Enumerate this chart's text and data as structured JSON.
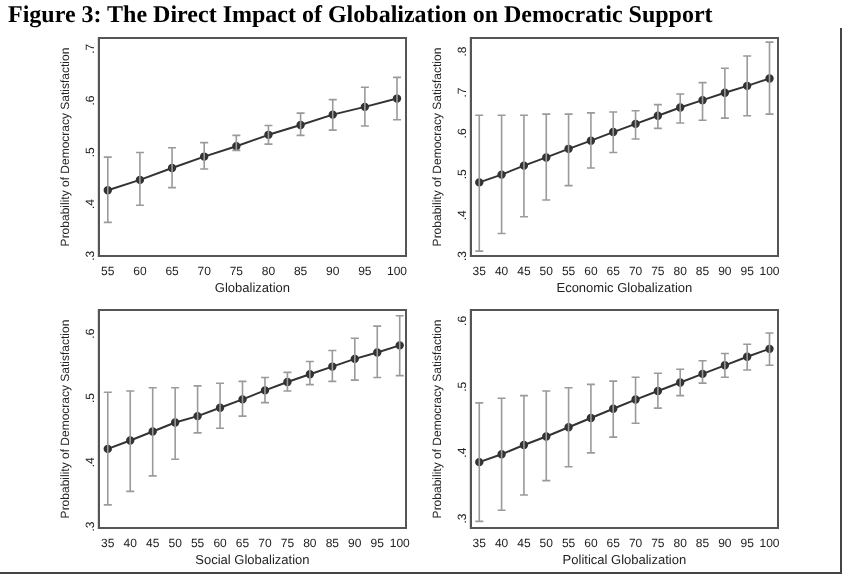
{
  "chart_data": [
    {
      "type": "line",
      "title": "Figure 3: The Direct Impact of Globalization on Democratic Support",
      "xlabel": "Globalization",
      "ylabel": "Probability of Democracy Satisfaction",
      "marker": "circle",
      "grid": false,
      "legend": false,
      "x": [
        55,
        60,
        65,
        70,
        75,
        80,
        85,
        90,
        95,
        100
      ],
      "xlim": [
        53.6,
        101.4
      ],
      "xticks": [
        55,
        60,
        65,
        70,
        75,
        80,
        85,
        90,
        95,
        100
      ],
      "ylim": [
        0.29,
        0.711
      ],
      "yticks": [
        {
          "value": 0.3,
          "label": ".3"
        },
        {
          "value": 0.4,
          "label": ".4"
        },
        {
          "value": 0.5,
          "label": ".5"
        },
        {
          "value": 0.6,
          "label": ".6"
        },
        {
          "value": 0.7,
          "label": ".7"
        }
      ],
      "series": [
        {
          "color": "#333333",
          "values": [
            0.417,
            0.437,
            0.46,
            0.482,
            0.502,
            0.524,
            0.543,
            0.563,
            0.578,
            0.594
          ],
          "errors": [
            [
              0.355,
              0.481
            ],
            [
              0.388,
              0.49
            ],
            [
              0.422,
              0.499
            ],
            [
              0.458,
              0.509
            ],
            [
              0.494,
              0.523
            ],
            [
              0.506,
              0.542
            ],
            [
              0.523,
              0.566
            ],
            [
              0.533,
              0.592
            ],
            [
              0.541,
              0.616
            ],
            [
              0.553,
              0.635
            ]
          ]
        }
      ]
    },
    {
      "type": "line",
      "xlabel": "Economic Globalization",
      "ylabel": "Probability of Democracy Satisfaction",
      "marker": "circle",
      "grid": false,
      "legend": false,
      "x": [
        35,
        40,
        45,
        50,
        55,
        60,
        65,
        70,
        75,
        80,
        85,
        90,
        95,
        100
      ],
      "xlim": [
        33.1,
        101.9
      ],
      "xticks": [
        35,
        40,
        45,
        50,
        55,
        60,
        65,
        70,
        75,
        80,
        85,
        90,
        95,
        100
      ],
      "ylim": [
        0.288,
        0.821
      ],
      "yticks": [
        {
          "value": 0.3,
          "label": ".3"
        },
        {
          "value": 0.4,
          "label": ".4"
        },
        {
          "value": 0.5,
          "label": ".5"
        },
        {
          "value": 0.6,
          "label": ".6"
        },
        {
          "value": 0.7,
          "label": ".7"
        },
        {
          "value": 0.8,
          "label": ".8"
        }
      ],
      "series": [
        {
          "color": "#333333",
          "values": [
            0.468,
            0.487,
            0.509,
            0.529,
            0.55,
            0.57,
            0.591,
            0.611,
            0.631,
            0.651,
            0.669,
            0.687,
            0.704,
            0.722
          ],
          "errors": [
            [
              0.3,
              0.632
            ],
            [
              0.343,
              0.632
            ],
            [
              0.384,
              0.632
            ],
            [
              0.425,
              0.635
            ],
            [
              0.46,
              0.635
            ],
            [
              0.503,
              0.638
            ],
            [
              0.541,
              0.64
            ],
            [
              0.574,
              0.643
            ],
            [
              0.6,
              0.658
            ],
            [
              0.613,
              0.684
            ],
            [
              0.62,
              0.712
            ],
            [
              0.625,
              0.747
            ],
            [
              0.631,
              0.777
            ],
            [
              0.635,
              0.811
            ]
          ]
        }
      ]
    },
    {
      "type": "line",
      "xlabel": "Social Globalization",
      "ylabel": "Probability of Democracy Satisfaction",
      "marker": "circle",
      "grid": false,
      "legend": false,
      "x": [
        35,
        40,
        45,
        50,
        55,
        60,
        65,
        70,
        75,
        80,
        85,
        90,
        95,
        100
      ],
      "xlim": [
        33.0,
        101.4
      ],
      "xticks": [
        35,
        40,
        45,
        50,
        55,
        60,
        65,
        70,
        75,
        80,
        85,
        90,
        95,
        100
      ],
      "ylim": [
        0.29,
        0.629
      ],
      "yticks": [
        {
          "value": 0.3,
          "label": ".3"
        },
        {
          "value": 0.4,
          "label": ".4"
        },
        {
          "value": 0.5,
          "label": ".5"
        },
        {
          "value": 0.6,
          "label": ".6"
        }
      ],
      "series": [
        {
          "color": "#333333",
          "values": [
            0.413,
            0.426,
            0.44,
            0.454,
            0.464,
            0.477,
            0.49,
            0.504,
            0.517,
            0.529,
            0.541,
            0.553,
            0.563,
            0.574
          ],
          "errors": [
            [
              0.326,
              0.501
            ],
            [
              0.347,
              0.503
            ],
            [
              0.371,
              0.508
            ],
            [
              0.397,
              0.508
            ],
            [
              0.438,
              0.511
            ],
            [
              0.445,
              0.515
            ],
            [
              0.464,
              0.518
            ],
            [
              0.485,
              0.524
            ],
            [
              0.503,
              0.532
            ],
            [
              0.513,
              0.549
            ],
            [
              0.518,
              0.566
            ],
            [
              0.52,
              0.585
            ],
            [
              0.524,
              0.604
            ],
            [
              0.527,
              0.62
            ]
          ]
        }
      ]
    },
    {
      "type": "line",
      "xlabel": "Political Globalization",
      "ylabel": "Probability of Democracy Satisfaction",
      "marker": "circle",
      "grid": false,
      "legend": false,
      "x": [
        35,
        40,
        45,
        50,
        55,
        60,
        65,
        70,
        75,
        80,
        85,
        90,
        95,
        100
      ],
      "xlim": [
        33.1,
        101.9
      ],
      "xticks": [
        35,
        40,
        45,
        50,
        55,
        60,
        65,
        70,
        75,
        80,
        85,
        90,
        95,
        100
      ],
      "ylim": [
        0.278,
        0.609
      ],
      "yticks": [
        {
          "value": 0.3,
          "label": ".3"
        },
        {
          "value": 0.4,
          "label": ".4"
        },
        {
          "value": 0.5,
          "label": ".5"
        },
        {
          "value": 0.6,
          "label": ".6"
        }
      ],
      "series": [
        {
          "color": "#333333",
          "values": [
            0.378,
            0.39,
            0.404,
            0.417,
            0.431,
            0.445,
            0.459,
            0.473,
            0.486,
            0.499,
            0.512,
            0.525,
            0.538,
            0.55
          ],
          "errors": [
            [
              0.288,
              0.468
            ],
            [
              0.305,
              0.475
            ],
            [
              0.328,
              0.479
            ],
            [
              0.35,
              0.486
            ],
            [
              0.371,
              0.491
            ],
            [
              0.392,
              0.496
            ],
            [
              0.416,
              0.501
            ],
            [
              0.437,
              0.507
            ],
            [
              0.46,
              0.513
            ],
            [
              0.479,
              0.519
            ],
            [
              0.498,
              0.532
            ],
            [
              0.507,
              0.543
            ],
            [
              0.518,
              0.557
            ],
            [
              0.525,
              0.574
            ]
          ]
        }
      ]
    }
  ]
}
